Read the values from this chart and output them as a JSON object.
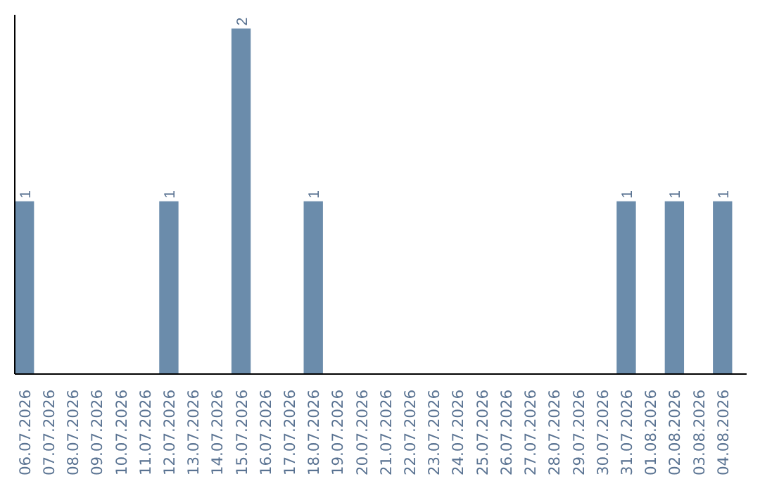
{
  "chart_data": {
    "type": "bar",
    "categories": [
      "06.07.2026",
      "07.07.2026",
      "08.07.2026",
      "09.07.2026",
      "10.07.2026",
      "11.07.2026",
      "12.07.2026",
      "13.07.2026",
      "14.07.2026",
      "15.07.2026",
      "16.07.2026",
      "17.07.2026",
      "18.07.2026",
      "19.07.2026",
      "20.07.2026",
      "21.07.2026",
      "22.07.2026",
      "23.07.2026",
      "24.07.2026",
      "25.07.2026",
      "26.07.2026",
      "27.07.2026",
      "28.07.2026",
      "29.07.2026",
      "30.07.2026",
      "31.07.2026",
      "01.08.2026",
      "02.08.2026",
      "03.08.2026",
      "04.08.2026"
    ],
    "values": [
      1,
      0,
      0,
      0,
      0,
      0,
      1,
      0,
      0,
      2,
      0,
      0,
      1,
      0,
      0,
      0,
      0,
      0,
      0,
      0,
      0,
      0,
      0,
      0,
      0,
      1,
      0,
      1,
      0,
      1
    ],
    "value_labels": [
      "1",
      null,
      null,
      null,
      null,
      null,
      "1",
      null,
      null,
      "2",
      null,
      null,
      "1",
      null,
      null,
      null,
      null,
      null,
      null,
      null,
      null,
      null,
      null,
      null,
      null,
      "1",
      null,
      "1",
      null,
      "1"
    ],
    "color": "#6b8cab",
    "tick_labels": "x",
    "grid": false
  }
}
